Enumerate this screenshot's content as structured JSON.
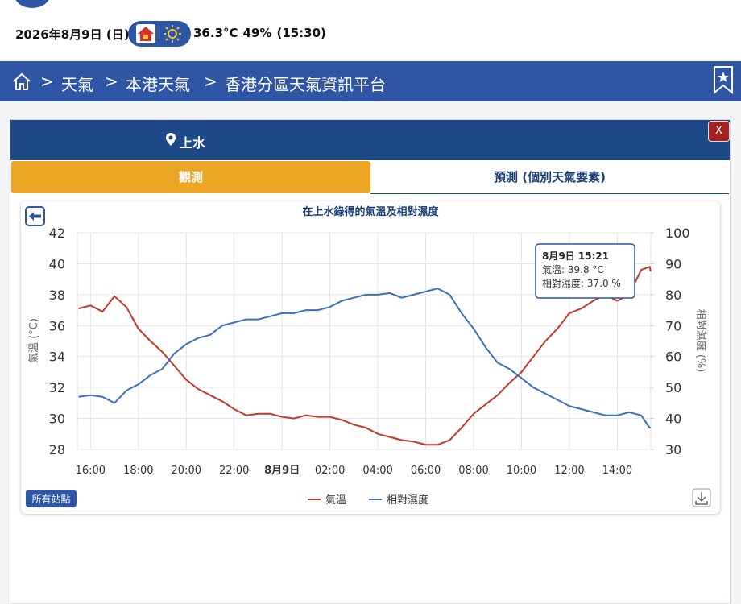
{
  "header": {
    "date": "2026年8月9日 (日)",
    "temperature": "36.3°C",
    "humidity": "49%",
    "time": "(15:30)"
  },
  "nav": {
    "crumbs": [
      "天氣",
      "本港天氣",
      "香港分區天氣資訊平台"
    ],
    "separator": ">"
  },
  "panel": {
    "location": "上水",
    "close": "X",
    "tabs": [
      "觀測",
      "預測 (個別天氣要素)"
    ],
    "button": "所有站點"
  },
  "tooltip": {
    "title": "8月9日 15:21",
    "lines": [
      "氣溫: 39.8 °C",
      "相對濕度: 37.0 %"
    ]
  },
  "chart_data": {
    "type": "line",
    "title": "在上水錄得的氣溫及相對濕度",
    "y_label": "氣溫 (°C)",
    "y2_label": "相對濕度 (%)",
    "x": [
      15.5,
      16,
      16.5,
      17,
      17.5,
      18,
      18.5,
      19,
      19.5,
      20,
      20.5,
      21,
      21.5,
      22,
      22.5,
      23,
      23.5,
      24,
      24.5,
      25,
      25.5,
      26,
      26.5,
      27,
      27.5,
      28,
      28.5,
      29,
      29.5,
      30,
      30.5,
      31,
      31.5,
      32,
      32.5,
      33,
      33.5,
      34,
      34.5,
      35,
      35.5,
      36,
      36.5,
      37,
      37.5,
      38,
      38.5,
      39,
      39.35,
      39.4
    ],
    "xlim": [
      15.45,
      39.4
    ],
    "xticks": [
      {
        "value": 16,
        "label": "16:00"
      },
      {
        "value": 18,
        "label": "18:00"
      },
      {
        "value": 20,
        "label": "20:00"
      },
      {
        "value": 22,
        "label": "22:00"
      },
      {
        "value": 24,
        "label": "8月9日"
      },
      {
        "value": 26,
        "label": "02:00"
      },
      {
        "value": 28,
        "label": "04:00"
      },
      {
        "value": 30,
        "label": "06:00"
      },
      {
        "value": 32,
        "label": "08:00"
      },
      {
        "value": 34,
        "label": "10:00"
      },
      {
        "value": 36,
        "label": "12:00"
      },
      {
        "value": 38,
        "label": "14:00"
      }
    ],
    "ylim": [
      28,
      42
    ],
    "yticks": [
      28,
      30,
      32,
      34,
      36,
      38,
      40,
      42
    ],
    "y2lim": [
      30,
      100
    ],
    "y2ticks": [
      30,
      40,
      50,
      60,
      70,
      80,
      90,
      100
    ],
    "grid": true,
    "series": [
      {
        "name": "氣溫",
        "color": "#c0392b",
        "values": [
          37.1,
          37.3,
          36.9,
          37.9,
          37.2,
          35.8,
          35.0,
          34.3,
          33.4,
          32.5,
          31.9,
          31.5,
          31.1,
          30.6,
          30.2,
          30.3,
          30.3,
          30.1,
          30.0,
          30.2,
          30.1,
          30.1,
          29.9,
          29.6,
          29.4,
          29.0,
          28.8,
          28.6,
          28.5,
          28.3,
          28.3,
          28.6,
          29.4,
          30.3,
          30.9,
          31.5,
          32.3,
          33.0,
          34.0,
          35.0,
          35.8,
          36.8,
          37.1,
          37.6,
          38.0,
          37.6,
          38.0,
          39.6,
          39.8,
          39.5
        ]
      },
      {
        "name": "相對濕度",
        "color": "#3b6fbf",
        "axis": "y2",
        "values": [
          47,
          47.5,
          47,
          45,
          49,
          51,
          54,
          56,
          61,
          64,
          66,
          67,
          70,
          71,
          72,
          72,
          73,
          74,
          74,
          75,
          75,
          76,
          78,
          79,
          80,
          80,
          80.5,
          79,
          80,
          81,
          82,
          80,
          74,
          69,
          63,
          58,
          56,
          53,
          50,
          48,
          46,
          44,
          43,
          42,
          41,
          41,
          42,
          41,
          37,
          37
        ]
      }
    ]
  }
}
